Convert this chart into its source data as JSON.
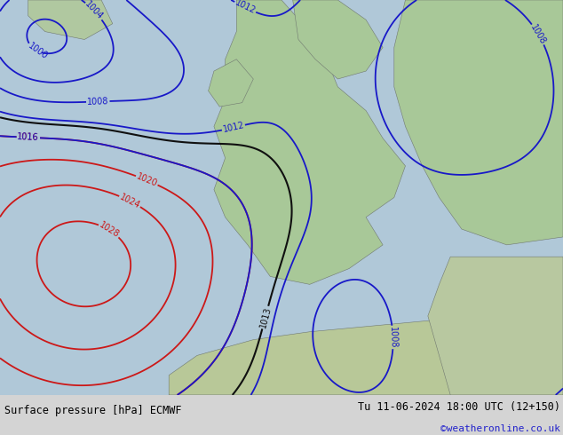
{
  "title_left": "Surface pressure [hPa] ECMWF",
  "title_right": "Tu 11-06-2024 18:00 UTC (12+150)",
  "watermark": "©weatheronline.co.uk",
  "figsize": [
    6.34,
    4.9
  ],
  "dpi": 100,
  "map_bg": "#b8c8b0",
  "footer_bg": "#d4d4d4",
  "sea_color": "#9ab8c8",
  "land_color": "#a8c89a"
}
